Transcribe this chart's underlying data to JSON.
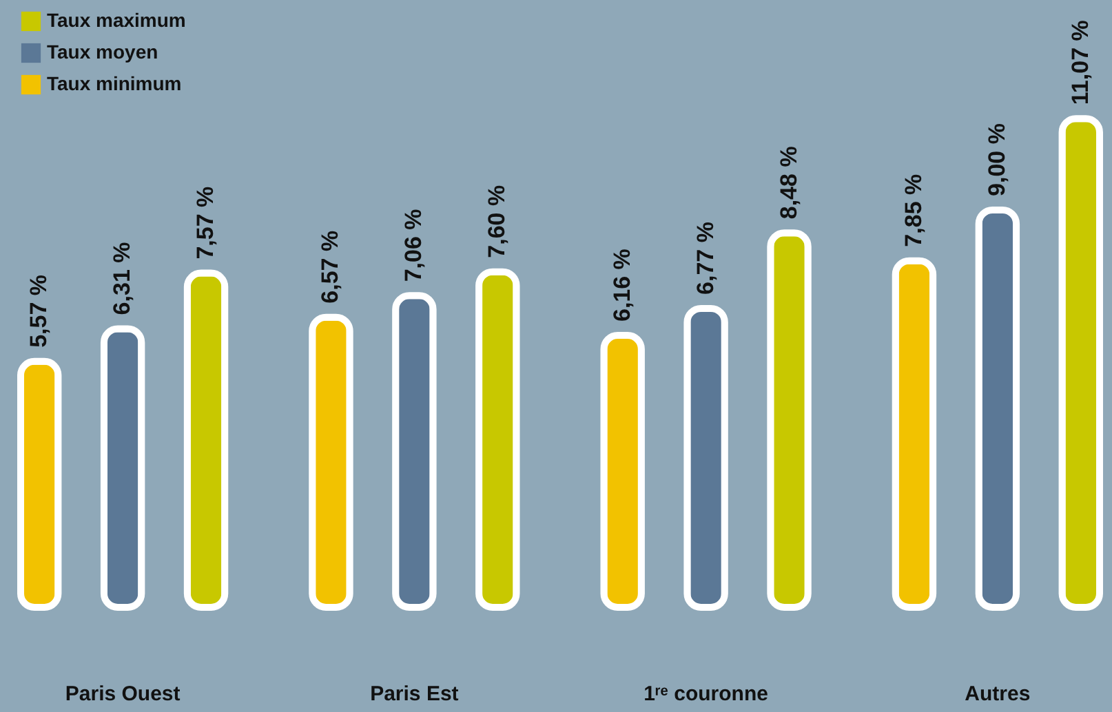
{
  "chart_data": {
    "type": "bar",
    "categories": [
      "Paris Ouest",
      "Paris Est",
      "1ʳᵉ couronne",
      "Autres"
    ],
    "series": [
      {
        "name": "Taux minimum",
        "color": "#f2c200",
        "values": [
          5.57,
          6.57,
          6.16,
          7.85
        ],
        "value_labels": [
          "5,57 %",
          "6,57 %",
          "6,16 %",
          "7,85 %"
        ]
      },
      {
        "name": "Taux moyen",
        "color": "#5b7896",
        "values": [
          6.31,
          7.06,
          6.77,
          9.0
        ],
        "value_labels": [
          "6,31 %",
          "7,06 %",
          "6,77 %",
          "9,00 %"
        ]
      },
      {
        "name": "Taux maximum",
        "color": "#c8c800",
        "values": [
          7.57,
          7.6,
          8.48,
          11.07
        ],
        "value_labels": [
          "7,57 %",
          "7,60 %",
          "8,48 %",
          "11,07 %"
        ]
      }
    ],
    "legend": "top left"
  }
}
